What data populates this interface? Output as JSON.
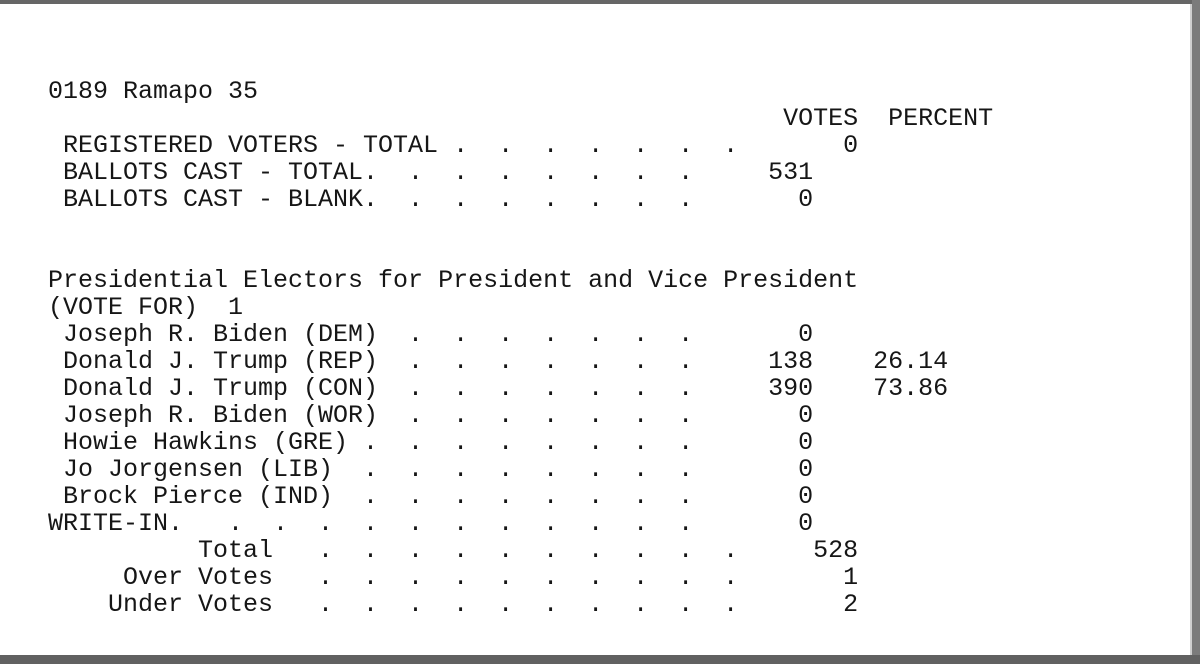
{
  "colors": {
    "page_background": "#ffffff",
    "text": "#161616",
    "top_edge": "#666666",
    "bottom_edge": "#616161",
    "right_edge": "#7b7b7b",
    "page_edge_line": "#cfcfcf"
  },
  "report": {
    "precinct_header": "0189 Ramapo 35",
    "columns": [
      "VOTES",
      "PERCENT"
    ],
    "summary": [
      {
        "label": "REGISTERED VOTERS - TOTAL",
        "votes": "0",
        "percent": ""
      },
      {
        "label": "BALLOTS CAST - TOTAL",
        "votes": "531",
        "percent": ""
      },
      {
        "label": "BALLOTS CAST - BLANK",
        "votes": "0",
        "percent": ""
      }
    ],
    "contest": {
      "title": "Presidential Electors for President and Vice President",
      "vote_for": "(VOTE FOR)  1",
      "rows": [
        {
          "label": "Joseph R. Biden (DEM)",
          "votes": "0",
          "percent": ""
        },
        {
          "label": "Donald J. Trump (REP)",
          "votes": "138",
          "percent": "26.14"
        },
        {
          "label": "Donald J. Trump (CON)",
          "votes": "390",
          "percent": "73.86"
        },
        {
          "label": "Joseph R. Biden (WOR)",
          "votes": "0",
          "percent": ""
        },
        {
          "label": "Howie Hawkins (GRE)",
          "votes": "0",
          "percent": ""
        },
        {
          "label": "Jo Jorgensen (LIB)",
          "votes": "0",
          "percent": ""
        },
        {
          "label": "Brock Pierce (IND)",
          "votes": "0",
          "percent": ""
        },
        {
          "label": "WRITE-IN",
          "votes": "0",
          "percent": ""
        },
        {
          "label": "Total",
          "votes": "528",
          "percent": ""
        },
        {
          "label": "Over Votes",
          "votes": "1",
          "percent": ""
        },
        {
          "label": "Under Votes",
          "votes": "2",
          "percent": ""
        }
      ]
    },
    "lines": [
      "",
      "",
      "0189 Ramapo 35",
      "                                                 VOTES  PERCENT",
      " REGISTERED VOTERS - TOTAL .  .  .  .  .  .  .       0",
      " BALLOTS CAST - TOTAL.  .  .  .  .  .  .  .     531",
      " BALLOTS CAST - BLANK.  .  .  .  .  .  .  .       0",
      "",
      "",
      "Presidential Electors for President and Vice President",
      "(VOTE FOR)  1",
      " Joseph R. Biden (DEM)  .  .  .  .  .  .  .       0",
      " Donald J. Trump (REP)  .  .  .  .  .  .  .     138    26.14",
      " Donald J. Trump (CON)  .  .  .  .  .  .  .     390    73.86",
      " Joseph R. Biden (WOR)  .  .  .  .  .  .  .       0",
      " Howie Hawkins (GRE) .  .  .  .  .  .  .  .       0",
      " Jo Jorgensen (LIB)  .  .  .  .  .  .  .  .       0",
      " Brock Pierce (IND)  .  .  .  .  .  .  .  .       0",
      "WRITE-IN.   .  .  .  .  .  .  .  .  .  .  .       0",
      "          Total   .  .  .  .  .  .  .  .  .  .     528",
      "     Over Votes   .  .  .  .  .  .  .  .  .  .       1",
      "    Under Votes   .  .  .  .  .  .  .  .  .  .       2"
    ]
  }
}
